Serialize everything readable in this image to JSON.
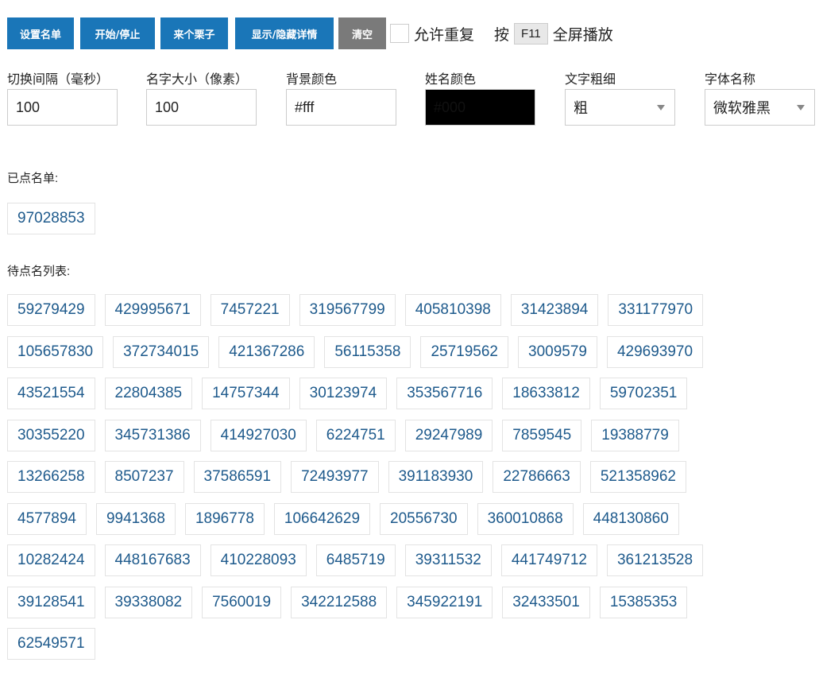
{
  "toolbar": {
    "buttons": [
      "设置名单",
      "开始/停止",
      "来个栗子",
      "显示/隐藏详情",
      "清空"
    ],
    "allow_repeat": {
      "label": "允许重复",
      "checked": false
    },
    "fullscreen_hint": {
      "prefix": "按",
      "key": "F11",
      "suffix": "全屏播放"
    }
  },
  "settings": [
    {
      "label": "切换间隔（毫秒）",
      "value": "100"
    },
    {
      "label": "名字大小（像素）",
      "value": "100"
    },
    {
      "label": "背景颜色",
      "value": "#fff"
    },
    {
      "label": "姓名颜色",
      "value": "#000"
    },
    {
      "label": "文字粗细",
      "value": "粗"
    },
    {
      "label": "字体名称",
      "value": "微软雅黑"
    }
  ],
  "colors": {
    "primary": "#1a76b8",
    "clear_button": "#7a7a7a",
    "chip_text": "#1e5a8c",
    "name_color_swatch": "#000000"
  },
  "called": {
    "label": "已点名单:",
    "items": [
      "97028853"
    ]
  },
  "pending": {
    "label": "待点名列表:",
    "items": [
      "59279429",
      "429995671",
      "7457221",
      "319567799",
      "405810398",
      "31423894",
      "331177970",
      "105657830",
      "372734015",
      "421367286",
      "56115358",
      "25719562",
      "3009579",
      "429693970",
      "43521554",
      "22804385",
      "14757344",
      "30123974",
      "353567716",
      "18633812",
      "59702351",
      "30355220",
      "345731386",
      "414927030",
      "6224751",
      "29247989",
      "7859545",
      "19388779",
      "13266258",
      "8507237",
      "37586591",
      "72493977",
      "391183930",
      "22786663",
      "521358962",
      "4577894",
      "9941368",
      "1896778",
      "106642629",
      "20556730",
      "360010868",
      "448130860",
      "10282424",
      "448167683",
      "410228093",
      "6485719",
      "39311532",
      "441749712",
      "361213528",
      "39128541",
      "39338082",
      "7560019",
      "342212588",
      "345922191",
      "32433501",
      "15385353",
      "62549571"
    ]
  }
}
